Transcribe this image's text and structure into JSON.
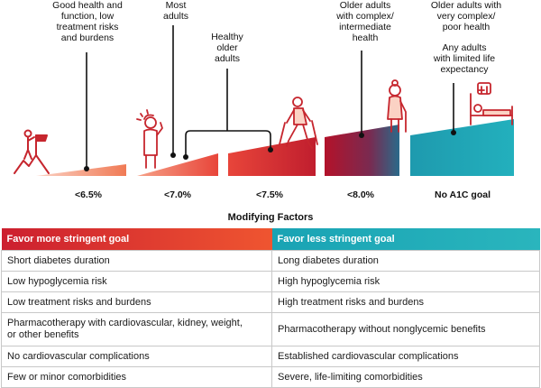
{
  "captions": [
    "Good health and\nfunction, low\ntreatment risks\nand burdens",
    "Most\nadults",
    "Healthy\nolder\nadults",
    "Older adults\nwith complex/\nintermediate\nhealth",
    "Older adults with\nvery complex/\npoor health",
    "Any adults\nwith limited life\nexpectancy"
  ],
  "goals": [
    "<6.5%",
    "<7.0%",
    "<7.5%",
    "<8.0%",
    "No A1C goal"
  ],
  "modifying_factors_title": "Modifying Factors",
  "table": {
    "headers": [
      "Favor more stringent goal",
      "Favor less stringent goal"
    ],
    "rows": [
      [
        "Short diabetes duration",
        "Long diabetes duration"
      ],
      [
        "Low hypoglycemia risk",
        "High hypoglycemia risk"
      ],
      [
        "Low treatment risks and burdens",
        "High treatment risks and burdens"
      ],
      [
        "Pharmacotherapy with cardiovascular, kidney, weight,\nor other benefits",
        "Pharmacotherapy without nonglycemic benefits"
      ],
      [
        "No cardiovascular complications",
        "Established cardiovascular complications"
      ],
      [
        "Few or minor comorbidities",
        "Severe, life-limiting comorbidities"
      ]
    ]
  },
  "colors": {
    "red": "#d22630",
    "orange": "#ef5a3a",
    "teal": "#1fa9b8",
    "dark": "#222222"
  },
  "icons": [
    "summit-flag-icon",
    "thinking-person-icon",
    "hiker-icon",
    "elderly-cane-icon",
    "hospital-bed-icon"
  ]
}
